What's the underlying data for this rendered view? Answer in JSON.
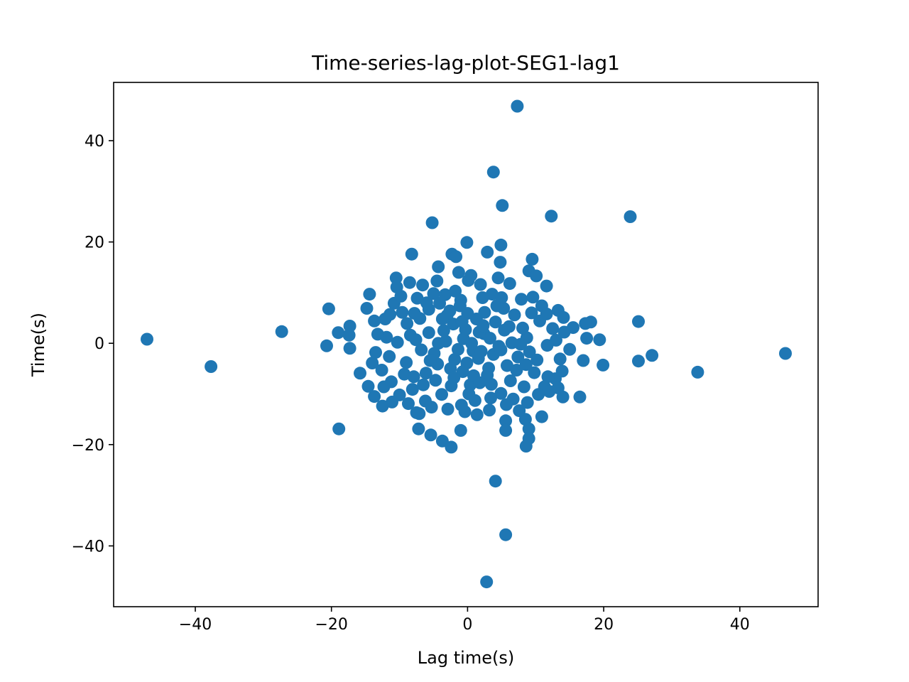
{
  "chart_data": {
    "type": "scatter",
    "title": "Time-series-lag-plot-SEG1-lag1",
    "xlabel": "Lag time(s)",
    "ylabel": "Time(s)",
    "xlim": [
      -52,
      51.5
    ],
    "ylim": [
      -52,
      51.5
    ],
    "xticks": [
      -40,
      -20,
      0,
      20,
      40
    ],
    "yticks": [
      -40,
      -20,
      0,
      20,
      40
    ],
    "xtick_labels": [
      "−40",
      "−20",
      "0",
      "20",
      "40"
    ],
    "ytick_labels": [
      "−40",
      "−20",
      "0",
      "20",
      "40"
    ],
    "grid": false,
    "marker_color": "#1f77b4",
    "series": [
      {
        "points": [
          [
            7.3,
            46.8
          ],
          [
            3.8,
            33.8
          ],
          [
            5.1,
            27.2
          ],
          [
            12.3,
            25.1
          ],
          [
            23.9,
            25.0
          ],
          [
            -5.2,
            23.8
          ],
          [
            -0.1,
            19.9
          ],
          [
            4.9,
            19.4
          ],
          [
            2.9,
            18.0
          ],
          [
            -8.2,
            17.6
          ],
          [
            -2.3,
            17.6
          ],
          [
            -1.7,
            17.1
          ],
          [
            9.5,
            16.6
          ],
          [
            4.8,
            16.0
          ],
          [
            -4.3,
            15.1
          ],
          [
            9.0,
            14.3
          ],
          [
            10.1,
            13.3
          ],
          [
            -10.5,
            12.9
          ],
          [
            11.6,
            11.3
          ],
          [
            -8.5,
            12.0
          ],
          [
            -14.4,
            9.7
          ],
          [
            -20.4,
            6.8
          ],
          [
            -14.8,
            6.9
          ],
          [
            13.3,
            6.5
          ],
          [
            14.1,
            5.1
          ],
          [
            25.1,
            4.3
          ],
          [
            18.1,
            4.2
          ],
          [
            17.3,
            3.9
          ],
          [
            -17.3,
            3.4
          ],
          [
            15.5,
            3.1
          ],
          [
            -27.3,
            2.3
          ],
          [
            -19.0,
            2.1
          ],
          [
            -17.4,
            1.6
          ],
          [
            17.5,
            1.0
          ],
          [
            19.4,
            0.7
          ],
          [
            -47.1,
            0.8
          ],
          [
            -20.7,
            -0.5
          ],
          [
            -17.3,
            -1.0
          ],
          [
            15.0,
            -1.2
          ],
          [
            17.0,
            -3.4
          ],
          [
            19.9,
            -4.3
          ],
          [
            25.1,
            -3.5
          ],
          [
            27.1,
            -2.4
          ],
          [
            33.8,
            -5.7
          ],
          [
            46.7,
            -2.0
          ],
          [
            -37.7,
            -4.6
          ],
          [
            -15.8,
            -5.9
          ],
          [
            -14.6,
            -8.5
          ],
          [
            12.9,
            -7.0
          ],
          [
            13.3,
            -8.8
          ],
          [
            14.0,
            -10.6
          ],
          [
            16.5,
            -10.6
          ],
          [
            -13.7,
            -10.5
          ],
          [
            -12.5,
            -12.4
          ],
          [
            -11.1,
            -11.6
          ],
          [
            -7.5,
            -13.7
          ],
          [
            10.9,
            -14.5
          ],
          [
            8.5,
            -15.0
          ],
          [
            5.6,
            -15.3
          ],
          [
            -18.9,
            -16.9
          ],
          [
            -7.2,
            -16.9
          ],
          [
            -5.4,
            -18.1
          ],
          [
            -1.0,
            -17.2
          ],
          [
            5.6,
            -17.2
          ],
          [
            9.0,
            -16.9
          ],
          [
            9.0,
            -18.8
          ],
          [
            -3.7,
            -19.3
          ],
          [
            -2.4,
            -20.5
          ],
          [
            8.6,
            -20.3
          ],
          [
            4.1,
            -27.2
          ],
          [
            5.6,
            -37.8
          ],
          [
            2.8,
            -47.1
          ],
          [
            -3.2,
            0.4
          ],
          [
            0.8,
            -1.5
          ],
          [
            2.4,
            1.9
          ],
          [
            -1.9,
            -3.2
          ],
          [
            4.6,
            -0.6
          ],
          [
            -5.7,
            2.1
          ],
          [
            1.3,
            4.8
          ],
          [
            -0.7,
            -5.6
          ],
          [
            6.1,
            3.3
          ],
          [
            -4.4,
            -4.1
          ],
          [
            3.1,
            -4.9
          ],
          [
            -6.8,
            -1.3
          ],
          [
            7.4,
            -2.7
          ],
          [
            -2.6,
            6.4
          ],
          [
            5.3,
            6.9
          ],
          [
            -8.9,
            3.9
          ],
          [
            8.7,
            1.1
          ],
          [
            -1.0,
            8.5
          ],
          [
            0.4,
            -8.2
          ],
          [
            -7.9,
            -6.6
          ],
          [
            9.8,
            -5.8
          ],
          [
            -9.6,
            6.1
          ],
          [
            10.6,
            4.4
          ],
          [
            3.6,
            9.7
          ],
          [
            -5.0,
            9.8
          ],
          [
            4.9,
            -9.9
          ],
          [
            -3.8,
            -10.1
          ],
          [
            11.7,
            -0.4
          ],
          [
            -11.5,
            -2.6
          ],
          [
            1.9,
            11.6
          ],
          [
            -11.9,
            1.2
          ],
          [
            7.9,
            8.7
          ],
          [
            -7.4,
            8.9
          ],
          [
            8.3,
            -8.6
          ],
          [
            -8.1,
            -9.1
          ],
          [
            0.1,
            12.4
          ],
          [
            12.5,
            2.9
          ],
          [
            -12.1,
            4.8
          ],
          [
            -0.9,
            -12.2
          ],
          [
            6.7,
            -11.0
          ],
          [
            -6.2,
            -11.4
          ],
          [
            10.9,
            7.4
          ],
          [
            -10.8,
            7.9
          ],
          [
            -12.6,
            -5.3
          ],
          [
            11.8,
            -6.6
          ],
          [
            2.5,
            6.1
          ],
          [
            -2.1,
            3.8
          ],
          [
            0.9,
            -6.4
          ],
          [
            -4.3,
            0.0
          ],
          [
            6.5,
            0.1
          ],
          [
            -6.1,
            -5.9
          ],
          [
            4.1,
            4.2
          ],
          [
            -0.3,
            2.7
          ],
          [
            1.6,
            -3.0
          ],
          [
            -1.4,
            -1.2
          ],
          [
            3.3,
            1.0
          ],
          [
            -3.0,
            5.5
          ],
          [
            5.8,
            -4.4
          ],
          [
            -5.7,
            6.7
          ],
          [
            6.9,
            5.6
          ],
          [
            -7.0,
            4.9
          ],
          [
            0.2,
            -10.0
          ],
          [
            -9.0,
            -3.8
          ],
          [
            9.1,
            -1.7
          ],
          [
            2.2,
            9.0
          ],
          [
            -2.4,
            -8.4
          ],
          [
            -10.3,
            0.2
          ],
          [
            10.2,
            -3.3
          ],
          [
            -1.8,
            10.3
          ],
          [
            1.1,
            -11.3
          ],
          [
            -6.5,
            -8.2
          ],
          [
            6.3,
            -7.4
          ],
          [
            -8.4,
            1.6
          ],
          [
            8.1,
            3.0
          ],
          [
            -4.9,
            -2.0
          ],
          [
            3.8,
            -2.2
          ],
          [
            -3.5,
            2.5
          ],
          [
            1.7,
            2.2
          ],
          [
            -0.6,
            0.9
          ],
          [
            0.6,
            0.0
          ],
          [
            2.9,
            -6.3
          ],
          [
            -4.1,
            7.9
          ],
          [
            4.3,
            7.4
          ],
          [
            -9.8,
            9.3
          ],
          [
            9.6,
            9.1
          ],
          [
            -11.2,
            -7.6
          ],
          [
            11.3,
            -8.6
          ],
          [
            -13.2,
            1.8
          ],
          [
            13.0,
            0.6
          ],
          [
            -13.5,
            -1.8
          ],
          [
            13.6,
            -3.1
          ],
          [
            -2.9,
            -13.0
          ],
          [
            3.2,
            -13.2
          ],
          [
            0.5,
            13.4
          ],
          [
            -0.4,
            -13.5
          ],
          [
            -6.6,
            11.5
          ],
          [
            6.2,
            11.8
          ],
          [
            -8.7,
            -11.9
          ],
          [
            8.8,
            -11.7
          ],
          [
            -10.4,
            11.1
          ],
          [
            7.6,
            -13.3
          ],
          [
            -7.1,
            -13.9
          ],
          [
            1.4,
            -14.1
          ],
          [
            -1.3,
            14.0
          ],
          [
            -13.7,
            4.4
          ],
          [
            13.9,
            -5.5
          ],
          [
            -14.0,
            -3.9
          ],
          [
            14.2,
            2.2
          ],
          [
            4.9,
            -1.3
          ],
          [
            -2.5,
            -5.0
          ],
          [
            2.3,
            3.5
          ],
          [
            -5.5,
            -3.4
          ],
          [
            5.4,
            2.6
          ],
          [
            -3.7,
            4.8
          ],
          [
            0.0,
            5.9
          ],
          [
            -0.1,
            -3.9
          ],
          [
            3.5,
            -8.1
          ],
          [
            -4.7,
            -7.3
          ],
          [
            7.2,
            -5.3
          ],
          [
            -7.6,
            0.7
          ],
          [
            7.8,
            -0.2
          ],
          [
            -1.1,
            7.4
          ],
          [
            1.8,
            -7.8
          ],
          [
            -9.3,
            -6.1
          ],
          [
            9.4,
            6.0
          ],
          [
            -6.0,
            8.0
          ],
          [
            5.0,
            9.0
          ],
          [
            -2.0,
            -6.8
          ],
          [
            -11.4,
            5.7
          ],
          [
            11.6,
            5.8
          ],
          [
            -10.0,
            -10.2
          ],
          [
            10.4,
            -10.1
          ],
          [
            -12.3,
            -8.6
          ],
          [
            12.0,
            -9.5
          ],
          [
            -4.5,
            12.3
          ],
          [
            4.5,
            12.9
          ],
          [
            -5.3,
            -12.6
          ],
          [
            5.7,
            -12.1
          ],
          [
            -3.3,
            9.6
          ],
          [
            3.4,
            -10.8
          ],
          [
            -7.8,
            5.9
          ],
          [
            8.6,
            -4.2
          ],
          [
            -0.8,
            4.3
          ],
          [
            2.0,
            -1.6
          ]
        ]
      }
    ]
  }
}
